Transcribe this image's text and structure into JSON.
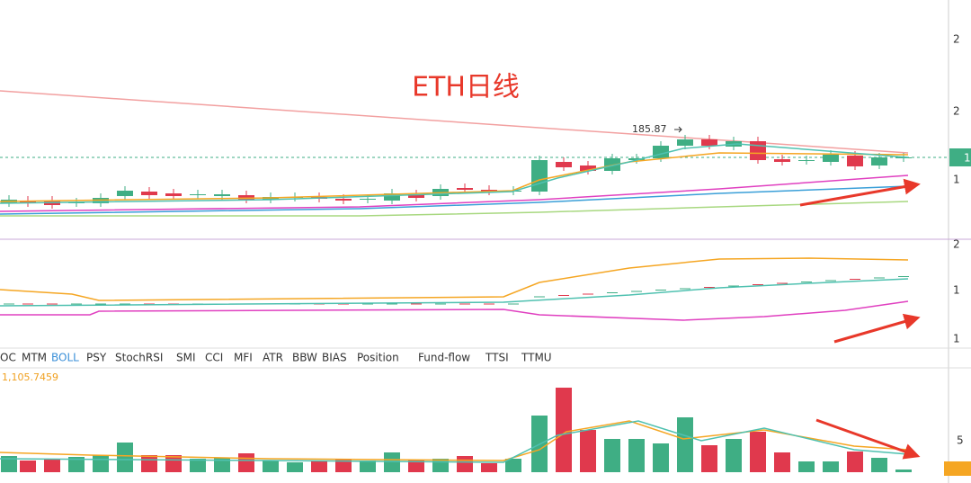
{
  "title": "ETH日线",
  "price_annotation": "185.87",
  "price_axis": [
    "2",
    "2",
    "1"
  ],
  "current_price_label": "1",
  "oscillator_axis": [
    "2",
    "1",
    "1"
  ],
  "indicator_tabs": [
    "OC",
    "MTM",
    "BOLL",
    "PSY",
    "StochRSI",
    "SMI",
    "CCI",
    "MFI",
    "ATR",
    "BBW",
    "BIAS",
    "Position",
    "Fund-flow",
    "TTSI",
    "TTMU"
  ],
  "active_tab": 2,
  "volume_value": "1,105.7459",
  "volume_axis": [
    "5"
  ]
}
